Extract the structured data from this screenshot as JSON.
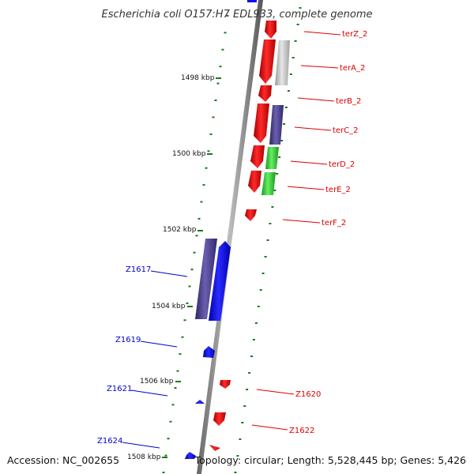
{
  "title": "Escherichia coli O157:H7 EDL933, complete genome",
  "accession": "Accession: NC_002655",
  "topology": "Topology: circular; Length: 5,528,445 bp; Genes: 5,426",
  "scale_labels": [
    "1498 kbp",
    "1500 kbp",
    "1502 kbp",
    "1504 kbp",
    "1506 kbp",
    "1508 kbp"
  ],
  "genes": [
    {
      "label": "terZ_2",
      "color": "#dd0000"
    },
    {
      "label": "terA_2",
      "color": "#dd0000"
    },
    {
      "label": "terB_2",
      "color": "#dd0000"
    },
    {
      "label": "terC_2",
      "color": "#dd0000"
    },
    {
      "label": "terD_2",
      "color": "#dd0000"
    },
    {
      "label": "terE_2",
      "color": "#dd0000"
    },
    {
      "label": "terF_2",
      "color": "#dd0000"
    },
    {
      "label": "Z1617",
      "color": "#0000cc"
    },
    {
      "label": "Z1619",
      "color": "#0000cc"
    },
    {
      "label": "Z1620",
      "color": "#dd0000"
    },
    {
      "label": "Z1621",
      "color": "#0000cc"
    },
    {
      "label": "Z1622",
      "color": "#dd0000"
    },
    {
      "label": "Z1624",
      "color": "#0000cc"
    }
  ],
  "colors": {
    "red": "#ee0000",
    "blue": "#1010ee",
    "slate": "#4a3f8c",
    "green": "#33cc33",
    "gray": "#bbbbbb",
    "tick": "#1a7a1a"
  }
}
